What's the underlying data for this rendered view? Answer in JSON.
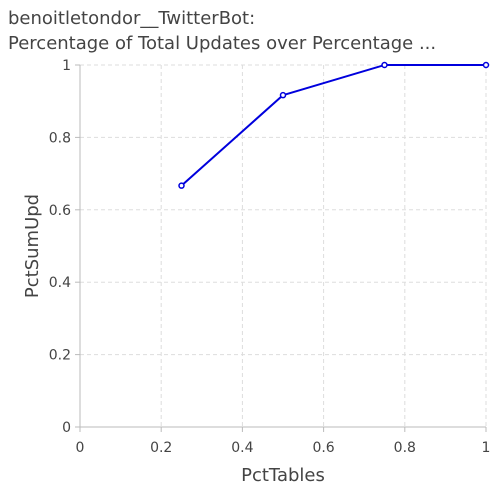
{
  "chart_data": {
    "type": "line",
    "title_line1": "benoitletondor__TwitterBot:",
    "title_line2": "Percentage of Total Updates over Percentage ...",
    "xlabel": "PctTables",
    "ylabel": "PctSumUpd",
    "xlim": [
      0,
      1
    ],
    "ylim": [
      0,
      1
    ],
    "xticks": [
      "0",
      "0.2",
      "0.4",
      "0.6",
      "0.8",
      "1"
    ],
    "yticks": [
      "0",
      "0.2",
      "0.4",
      "0.6",
      "0.8",
      "1"
    ],
    "grid": true,
    "series": [
      {
        "x": [
          0.25,
          0.5,
          0.75,
          1.0
        ],
        "y": [
          0.6667,
          0.9167,
          1.0,
          1.0
        ],
        "color": "#0000dd"
      }
    ]
  }
}
